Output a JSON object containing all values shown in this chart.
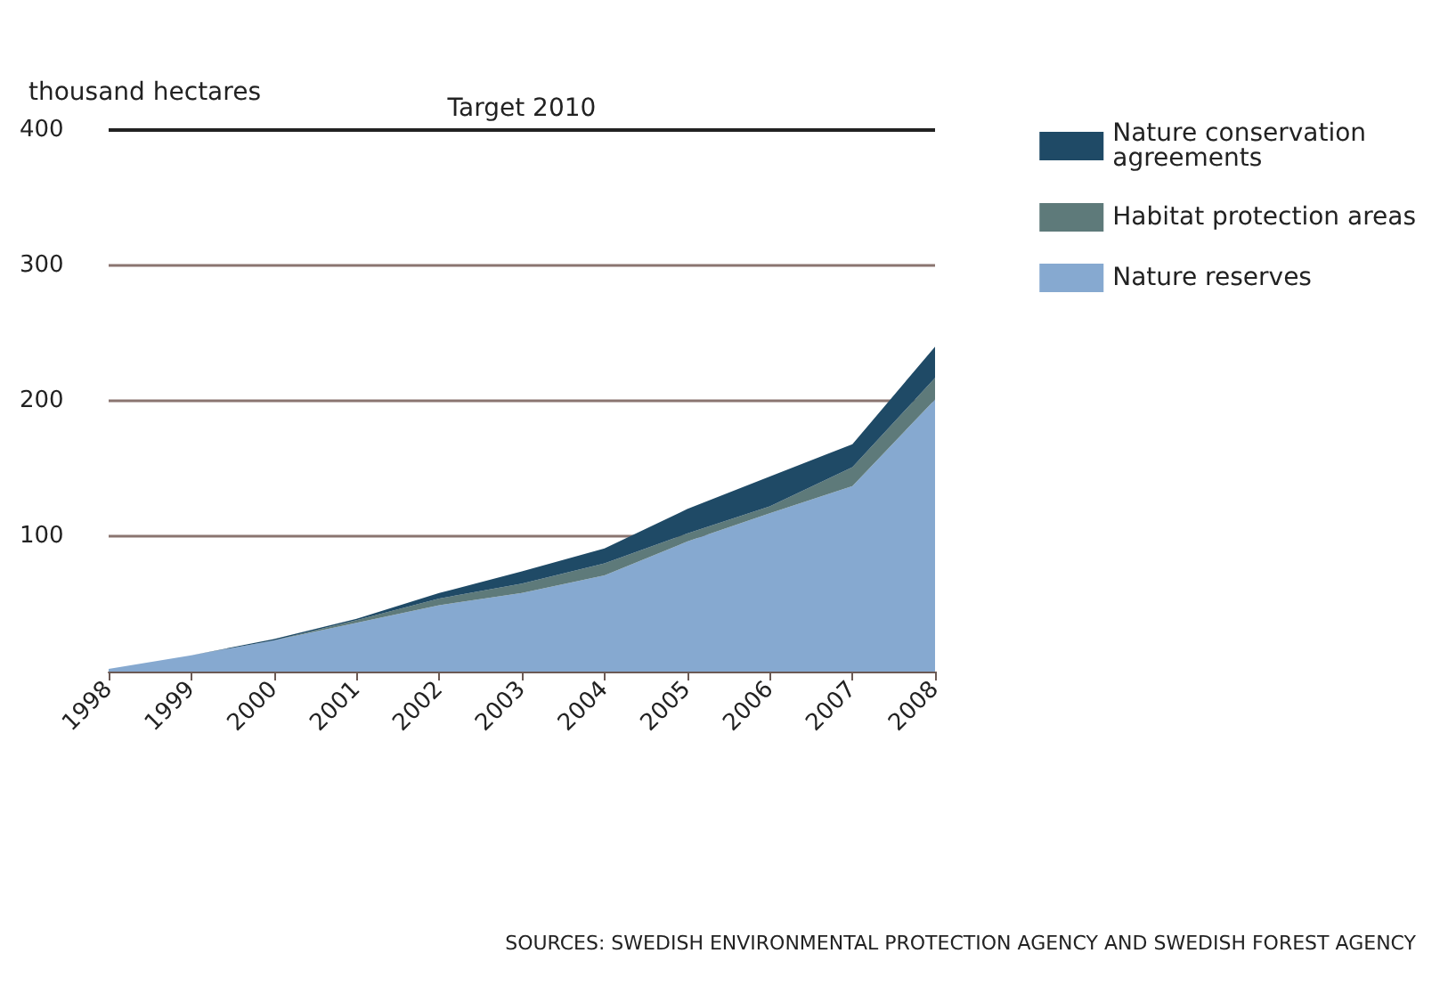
{
  "chart_data": {
    "type": "area",
    "stacked": true,
    "ylabel": "thousand hectares",
    "categories": [
      "1998",
      "1999",
      "2000",
      "2001",
      "2002",
      "2003",
      "2004",
      "2005",
      "2006",
      "2007",
      "2008"
    ],
    "series": [
      {
        "name": "Nature reserves",
        "color": "#86a9d0",
        "values": [
          2,
          12,
          23,
          36,
          49,
          58,
          71,
          96,
          117,
          137,
          201
        ]
      },
      {
        "name": "Habitat protection areas",
        "color": "#5e7a7a",
        "values": [
          0,
          0,
          0,
          2,
          5,
          7,
          9,
          6,
          5,
          14,
          16
        ]
      },
      {
        "name": "Nature conservation agreements",
        "color": "#1f4a66",
        "values": [
          0,
          0,
          1,
          1,
          4,
          9,
          11,
          18,
          22,
          17,
          23
        ]
      }
    ],
    "ylim": [
      0,
      400
    ],
    "yticks": [
      100,
      200,
      300,
      400
    ],
    "grid": "y",
    "legend": "right",
    "ref_lines": [
      {
        "axis": "y",
        "value": 400,
        "label": "Target 2010",
        "color": "#222222"
      }
    ],
    "annotations": [
      "SOURCES: SWEDISH ENVIRONMENTAL PROTECTION AGENCY AND SWEDISH FOREST AGENCY"
    ]
  }
}
